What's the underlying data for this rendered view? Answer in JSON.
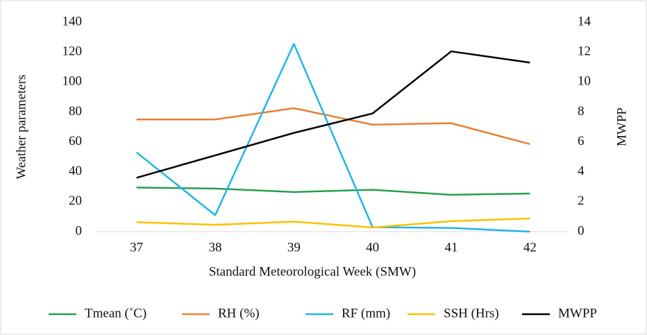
{
  "chart_data": {
    "type": "line",
    "xlabel": "Standard Meteorological Week (SMW)",
    "ylabel": "Weather parameters",
    "y2label": "MWPP",
    "categories": [
      "37",
      "38",
      "39",
      "40",
      "41",
      "42"
    ],
    "ylim": [
      0,
      140
    ],
    "yticks": [
      0,
      20,
      40,
      60,
      80,
      100,
      120,
      140
    ],
    "y2lim": [
      0,
      14
    ],
    "y2ticks": [
      0,
      2,
      4,
      6,
      8,
      10,
      12,
      14
    ],
    "grid": false,
    "legend": "bottom",
    "series": [
      {
        "name": "Tmean (˚C)",
        "color": "#22a24b",
        "values": [
          29.5,
          28.8,
          26.5,
          28,
          24.6,
          25.5
        ]
      },
      {
        "name": "RH (%)",
        "color": "#ed7d31",
        "values": [
          75,
          75,
          82.5,
          71.5,
          72.5,
          58.5
        ]
      },
      {
        "name": "RF (mm)",
        "color": "#1fb5e8",
        "values": [
          53,
          11,
          125.5,
          3,
          2.5,
          0
        ]
      },
      {
        "name": "SSH (Hrs)",
        "color": "#ffc000",
        "values": [
          6.3,
          4.6,
          6.7,
          2.8,
          7,
          8.8
        ]
      },
      {
        "name": "MWPP",
        "color": "#000000",
        "axis": "y2",
        "values": [
          3.6,
          5.1,
          6.6,
          7.9,
          12.05,
          11.3
        ]
      }
    ]
  }
}
